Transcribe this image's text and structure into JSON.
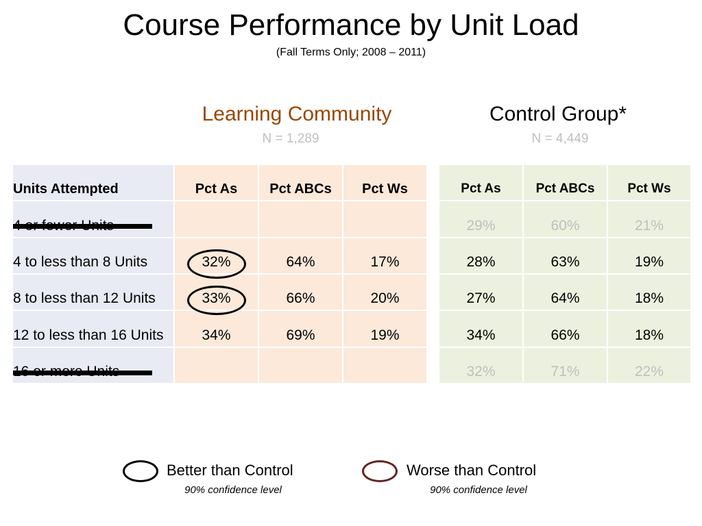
{
  "chart_data": {
    "type": "table",
    "title": "Course Performance by Unit Load",
    "subtitle": "(Fall Terms Only; 2008 – 2011)",
    "row_header": "Units Attempted",
    "label_column_background": "#E8EAF4",
    "muted_text_color": "#BFBFBF",
    "groups": [
      {
        "name": "Learning Community",
        "n_label": "N = 1,289",
        "color": "#974806",
        "background": "#FCE9DA",
        "columns": [
          "Pct As",
          "Pct ABCs",
          "Pct Ws"
        ]
      },
      {
        "name": "Control Group*",
        "n_label": "N = 4,449",
        "color": "#000000",
        "background": "#EBF1DE",
        "columns": [
          "Pct As",
          "Pct ABCs",
          "Pct Ws"
        ]
      }
    ],
    "rows": [
      {
        "label": "4 or fewer Units",
        "struck_out": true,
        "learning_community": [
          null,
          null,
          null
        ],
        "control_group": [
          "29%",
          "60%",
          "21%"
        ],
        "control_group_muted": true
      },
      {
        "label": "4 to less than 8 Units",
        "learning_community": [
          "32%",
          "64%",
          "17%"
        ],
        "learning_community_better": [
          true,
          false,
          false
        ],
        "control_group": [
          "28%",
          "63%",
          "19%"
        ]
      },
      {
        "label": "8 to less than 12 Units",
        "learning_community": [
          "33%",
          "66%",
          "20%"
        ],
        "learning_community_better": [
          true,
          false,
          false
        ],
        "control_group": [
          "27%",
          "64%",
          "18%"
        ]
      },
      {
        "label": "12 to less than 16 Units",
        "learning_community": [
          "34%",
          "69%",
          "19%"
        ],
        "control_group": [
          "34%",
          "66%",
          "18%"
        ]
      },
      {
        "label": "16 or more Units",
        "struck_out": true,
        "learning_community": [
          null,
          null,
          null
        ],
        "control_group": [
          "32%",
          "71%",
          "22%"
        ],
        "control_group_muted": true
      }
    ],
    "legend_position": "bottom",
    "legend": [
      {
        "label": "Better than Control",
        "note": "90% confidence level",
        "color": "#000000"
      },
      {
        "label": "Worse than Control",
        "note": "90% confidence level",
        "color": "#632523"
      }
    ]
  }
}
